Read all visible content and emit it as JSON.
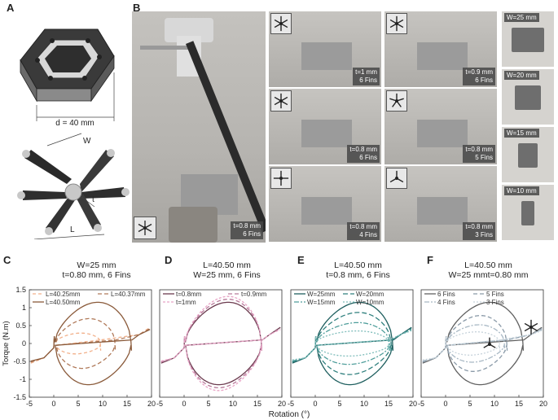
{
  "panels": {
    "A": {
      "label": "A",
      "dim_d": "d = 40 mm",
      "dim_w": "W",
      "dim_t": "t",
      "dim_l": "L"
    },
    "B": {
      "label": "B",
      "main_caption": [
        "t=0.8 mm",
        "6 Fins"
      ],
      "grid": [
        {
          "fins": 6,
          "lines": [
            "t=1 mm",
            "6 Fins"
          ]
        },
        {
          "fins": 6,
          "lines": [
            "t=0.9 mm",
            "6 Fins"
          ]
        },
        {
          "fins": 6,
          "lines": [
            "t=0.8 mm",
            "6 Fins"
          ]
        },
        {
          "fins": 5,
          "lines": [
            "t=0.8 mm",
            "5 Fins"
          ]
        },
        {
          "fins": 4,
          "lines": [
            "t=0.8 mm",
            "4 Fins"
          ]
        },
        {
          "fins": 3,
          "lines": [
            "t=0.8 mm",
            "3 Fins"
          ]
        }
      ],
      "widths": [
        "W=25 mm",
        "W=20 mm",
        "W=15 mm",
        "W=10 mm"
      ]
    },
    "C": {
      "label": "C",
      "title": [
        "W=25 mm",
        "t=0.80 mm, 6 Fins"
      ]
    },
    "D": {
      "label": "D",
      "title": [
        "L=40.50 mm",
        "W=25 mm, 6 Fins"
      ]
    },
    "E": {
      "label": "E",
      "title": [
        "L=40.50 mm",
        "t=0.8 mm, 6 Fins"
      ]
    },
    "F": {
      "label": "F",
      "title": [
        "L=40.50 mm",
        "W=25 mmt=0.80 mm"
      ]
    }
  },
  "chart_data": [
    {
      "type": "line",
      "panel": "C",
      "xlabel": "Rotation (°)",
      "ylabel": "Torque (N.m)",
      "xlim": [
        -5,
        20
      ],
      "ylim": [
        -1.5,
        1.5
      ],
      "xticks": [
        -5,
        0,
        5,
        10,
        15,
        20
      ],
      "yticks": [
        1.5,
        1,
        0.5,
        0,
        -0.5,
        -1,
        -1.5
      ],
      "legend": "top",
      "series": [
        {
          "name": "L=40.25mm",
          "color": "#f2b08a",
          "dash": "4,3",
          "amp": 0.28,
          "x0": 0.5,
          "x1": 9.5
        },
        {
          "name": "L=40.37mm",
          "color": "#b07a5a",
          "dash": "5,3",
          "amp": 0.75,
          "x0": 0.5,
          "x1": 12.5
        },
        {
          "name": "L=40.50mm",
          "color": "#8a5a3a",
          "dash": "",
          "amp": 1.28,
          "x0": 0.3,
          "x1": 15.8
        }
      ]
    },
    {
      "type": "line",
      "panel": "D",
      "xlabel": "Rotation (°)",
      "ylabel": "",
      "xlim": [
        -5,
        20
      ],
      "ylim": [
        -1.5,
        1.5
      ],
      "xticks": [
        -5,
        0,
        5,
        10,
        15,
        20
      ],
      "yticks": [],
      "legend": "top",
      "series": [
        {
          "name": "t=0.8mm",
          "color": "#6b3a4e",
          "dash": "",
          "amp": 1.28,
          "x0": 0.3,
          "x1": 15.8
        },
        {
          "name": "t=0.9mm",
          "color": "#b77a9a",
          "dash": "5,3",
          "amp": 1.38,
          "x0": 0.3,
          "x1": 15.8
        },
        {
          "name": "t=1mm",
          "color": "#e8a5c6",
          "dash": "3,2",
          "amp": 1.47,
          "x0": 0.3,
          "x1": 15.8
        }
      ]
    },
    {
      "type": "line",
      "panel": "E",
      "xlabel": "Rotation (°)",
      "ylabel": "",
      "xlim": [
        -5,
        20
      ],
      "ylim": [
        -1.5,
        1.5
      ],
      "xticks": [
        -5,
        0,
        5,
        10,
        15,
        20
      ],
      "yticks": [],
      "legend": "top",
      "series": [
        {
          "name": "W=25mm",
          "color": "#1f5f5f",
          "dash": "",
          "amp": 1.28,
          "x0": 0.3,
          "x1": 15.8
        },
        {
          "name": "W=20mm",
          "color": "#2e7f7d",
          "dash": "6,3",
          "amp": 0.95,
          "x0": 0.3,
          "x1": 15.5
        },
        {
          "name": "W=15mm",
          "color": "#4f9e9b",
          "dash": "6,2,2,2",
          "amp": 0.62,
          "x0": 0.3,
          "x1": 15.2
        },
        {
          "name": "W=10mm",
          "color": "#7fbdbb",
          "dash": "2,2",
          "amp": 0.35,
          "x0": 0.3,
          "x1": 15.0
        }
      ]
    },
    {
      "type": "line",
      "panel": "F",
      "xlabel": "Rotation (°)",
      "ylabel": "",
      "xlim": [
        -5,
        20
      ],
      "ylim": [
        -1.5,
        1.5
      ],
      "xticks": [
        -5,
        0,
        5,
        10,
        15,
        20
      ],
      "yticks": [],
      "legend": "top",
      "series": [
        {
          "name": "6 Fins",
          "color": "#606060",
          "dash": "",
          "amp": 1.28,
          "x0": 0.3,
          "x1": 15.8
        },
        {
          "name": "5 Fins",
          "color": "#8a9aa8",
          "dash": "5,3",
          "amp": 0.85,
          "x0": 0.3,
          "x1": 12.5
        },
        {
          "name": "4 Fins",
          "color": "#a8b8c4",
          "dash": "6,2,2,2",
          "amp": 0.55,
          "x0": 0.3,
          "x1": 12.0
        },
        {
          "name": "3 Fins",
          "color": "#c8d4dc",
          "dash": "2,2",
          "amp": 0.32,
          "x0": 0.3,
          "x1": 11.0
        }
      ]
    }
  ]
}
